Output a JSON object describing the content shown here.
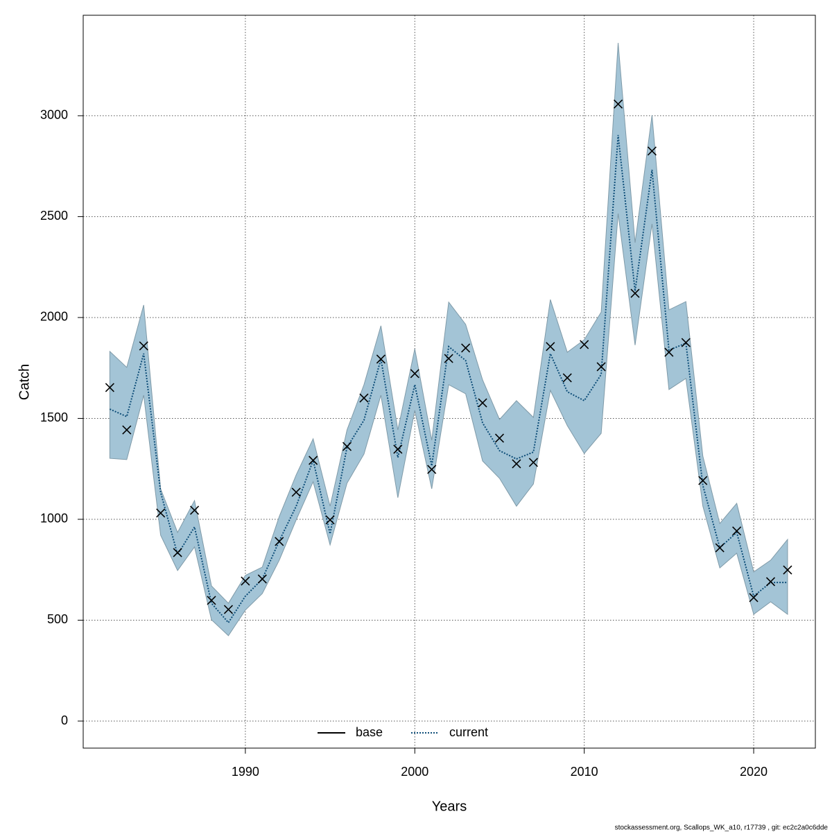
{
  "chart_data": {
    "type": "band-line",
    "x_label": "Years",
    "y_label": "Catch",
    "footer": "stockassessment.org, Scallops_WK_a10, r17739 , git: ec2c2a0c6dde",
    "x": [
      1982,
      1983,
      1984,
      1985,
      1986,
      1987,
      1988,
      1989,
      1990,
      1991,
      1992,
      1993,
      1994,
      1995,
      1996,
      1997,
      1998,
      1999,
      2000,
      2001,
      2002,
      2003,
      2004,
      2005,
      2006,
      2007,
      2008,
      2009,
      2010,
      2011,
      2012,
      2013,
      2014,
      2015,
      2016,
      2017,
      2018,
      2019,
      2020,
      2021,
      2022
    ],
    "estimate": [
      1546,
      1509,
      1821,
      1134,
      825,
      962,
      584,
      488,
      619,
      704,
      893,
      1065,
      1292,
      928,
      1357,
      1491,
      1794,
      1306,
      1667,
      1265,
      1856,
      1787,
      1478,
      1340,
      1299,
      1333,
      1821,
      1632,
      1588,
      1718,
      2904,
      2131,
      2732,
      1838,
      1873,
      1168,
      859,
      935,
      619,
      687,
      687
    ],
    "upper": [
      1832,
      1753,
      2062,
      1151,
      935,
      1093,
      670,
      584,
      722,
      763,
      1014,
      1220,
      1399,
      1065,
      1443,
      1667,
      1959,
      1443,
      1845,
      1392,
      2076,
      1966,
      1691,
      1495,
      1588,
      1505,
      2089,
      1828,
      1890,
      2027,
      3361,
      2371,
      3003,
      2038,
      2079,
      1313,
      979,
      1079,
      739,
      797,
      900
    ],
    "lower": [
      1302,
      1296,
      1615,
      921,
      746,
      863,
      502,
      423,
      550,
      632,
      797,
      997,
      1186,
      873,
      1179,
      1323,
      1615,
      1107,
      1540,
      1151,
      1667,
      1622,
      1289,
      1203,
      1065,
      1175,
      1639,
      1464,
      1326,
      1426,
      2515,
      1863,
      2464,
      1643,
      1698,
      1065,
      759,
      832,
      529,
      591,
      529
    ],
    "observed": [
      1653,
      1443,
      1859,
      1031,
      835,
      1045,
      598,
      553,
      694,
      704,
      890,
      1134,
      1292,
      997,
      1361,
      1601,
      1794,
      1347,
      1722,
      1247,
      1797,
      1849,
      1577,
      1402,
      1275,
      1282,
      1856,
      1701,
      1866,
      1756,
      3058,
      2120,
      2825,
      1828,
      1876,
      1192,
      859,
      942,
      612,
      691,
      749
    ],
    "band_color": "#a3c4d6",
    "band_edge": "#7f9aa8",
    "marker_color": "#000000",
    "legend": [
      {
        "name": "base",
        "color": "#000000",
        "style": "solid"
      },
      {
        "name": "current",
        "color": "#0d4d78",
        "style": "dotted"
      }
    ],
    "legend_position": "bottom",
    "xlim": [
      1980.43,
      2023.64
    ],
    "ylim": [
      -134,
      3498
    ],
    "xticks": [
      1990,
      2000,
      2010,
      2020
    ],
    "yticks": [
      0,
      500,
      1000,
      1500,
      2000,
      2500,
      3000
    ],
    "grid": true
  }
}
